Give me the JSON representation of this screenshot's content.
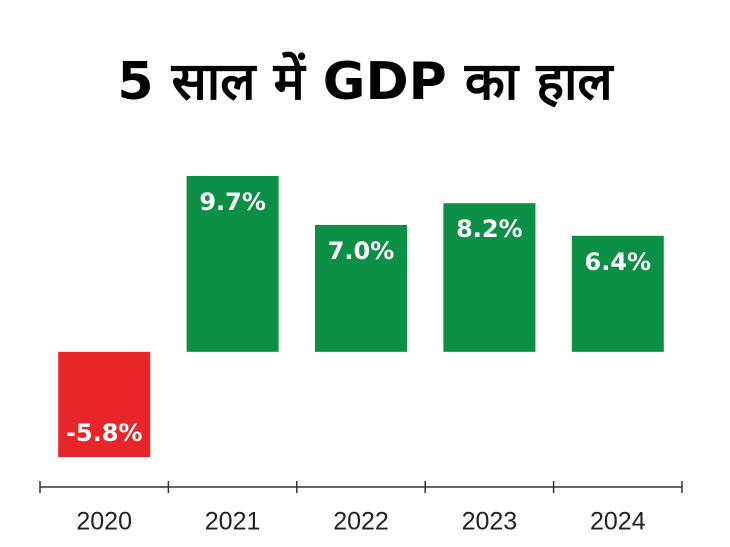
{
  "chart_data": {
    "type": "bar",
    "title": "5 साल में GDP का हाल",
    "categories": [
      "2020",
      "2021",
      "2022",
      "2023",
      "2024"
    ],
    "values": [
      -5.8,
      9.7,
      7.0,
      8.2,
      6.4
    ],
    "value_labels": [
      "-5.8%",
      "9.7%",
      "7.0%",
      "8.2%",
      "6.4%"
    ],
    "colors": [
      "#e8262a",
      "#0a8f44",
      "#0a8f44",
      "#0a8f44",
      "#0a8f44"
    ]
  }
}
